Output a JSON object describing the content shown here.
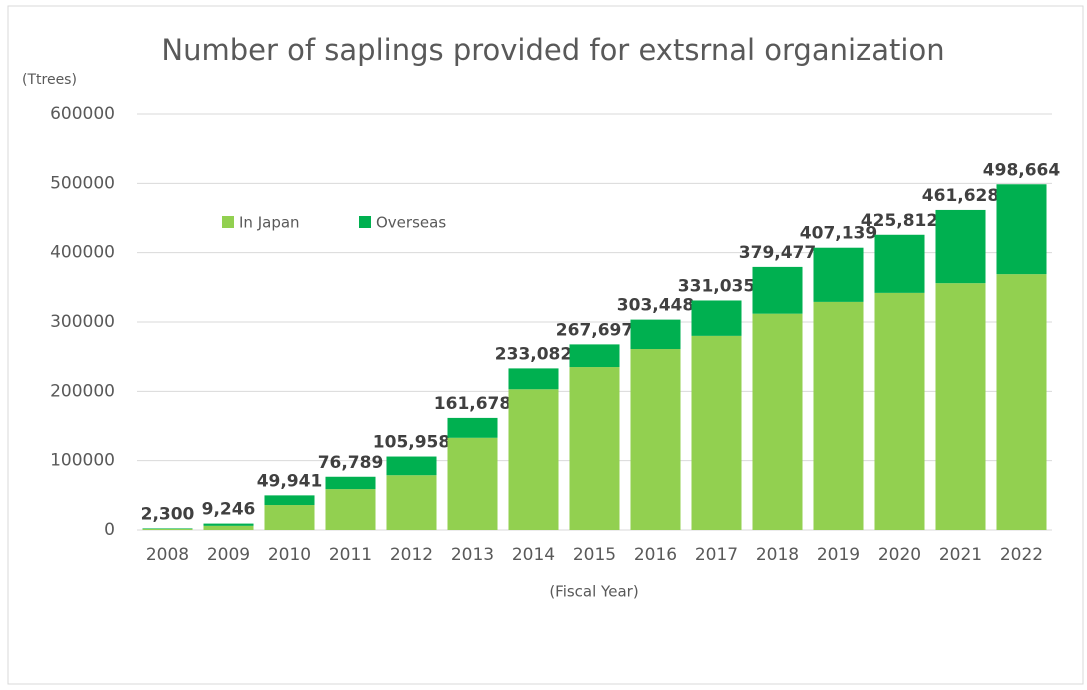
{
  "chart_data": {
    "type": "stacked_bar",
    "title": "Number of saplings provided for extsrnal organization",
    "y_axis_label": "(Ttrees)",
    "x_axis_label": "(Fiscal Year)",
    "categories": [
      "2008",
      "2009",
      "2010",
      "2011",
      "2012",
      "2013",
      "2014",
      "2015",
      "2016",
      "2017",
      "2018",
      "2019",
      "2020",
      "2021",
      "2022"
    ],
    "series": [
      {
        "name": "In Japan",
        "color": "#92d050",
        "values": [
          1500,
          6000,
          36000,
          59000,
          79000,
          133000,
          203000,
          235000,
          261000,
          280000,
          312000,
          329000,
          342000,
          356000,
          369000
        ]
      },
      {
        "name": "Overseas",
        "color": "#00b050",
        "values": [
          800,
          3246,
          13941,
          17789,
          26958,
          28678,
          30082,
          32697,
          42448,
          51035,
          67477,
          78139,
          83812,
          105628,
          129664
        ]
      }
    ],
    "totals": [
      2300,
      9246,
      49941,
      76789,
      105958,
      161678,
      233082,
      267697,
      303448,
      331035,
      379477,
      407139,
      425812,
      461628,
      498664
    ],
    "total_labels": [
      "2,300",
      "9,246",
      "49,941",
      "76,789",
      "105,958",
      "161,678",
      "233,082",
      "267,697",
      "303,448",
      "331,035",
      "379,477",
      "407,139",
      "425,812",
      "461,628",
      "498,664"
    ],
    "ylim": [
      0,
      600000
    ],
    "yticks": [
      0,
      100000,
      200000,
      300000,
      400000,
      500000,
      600000
    ],
    "grid": true,
    "legend": "upper left"
  }
}
